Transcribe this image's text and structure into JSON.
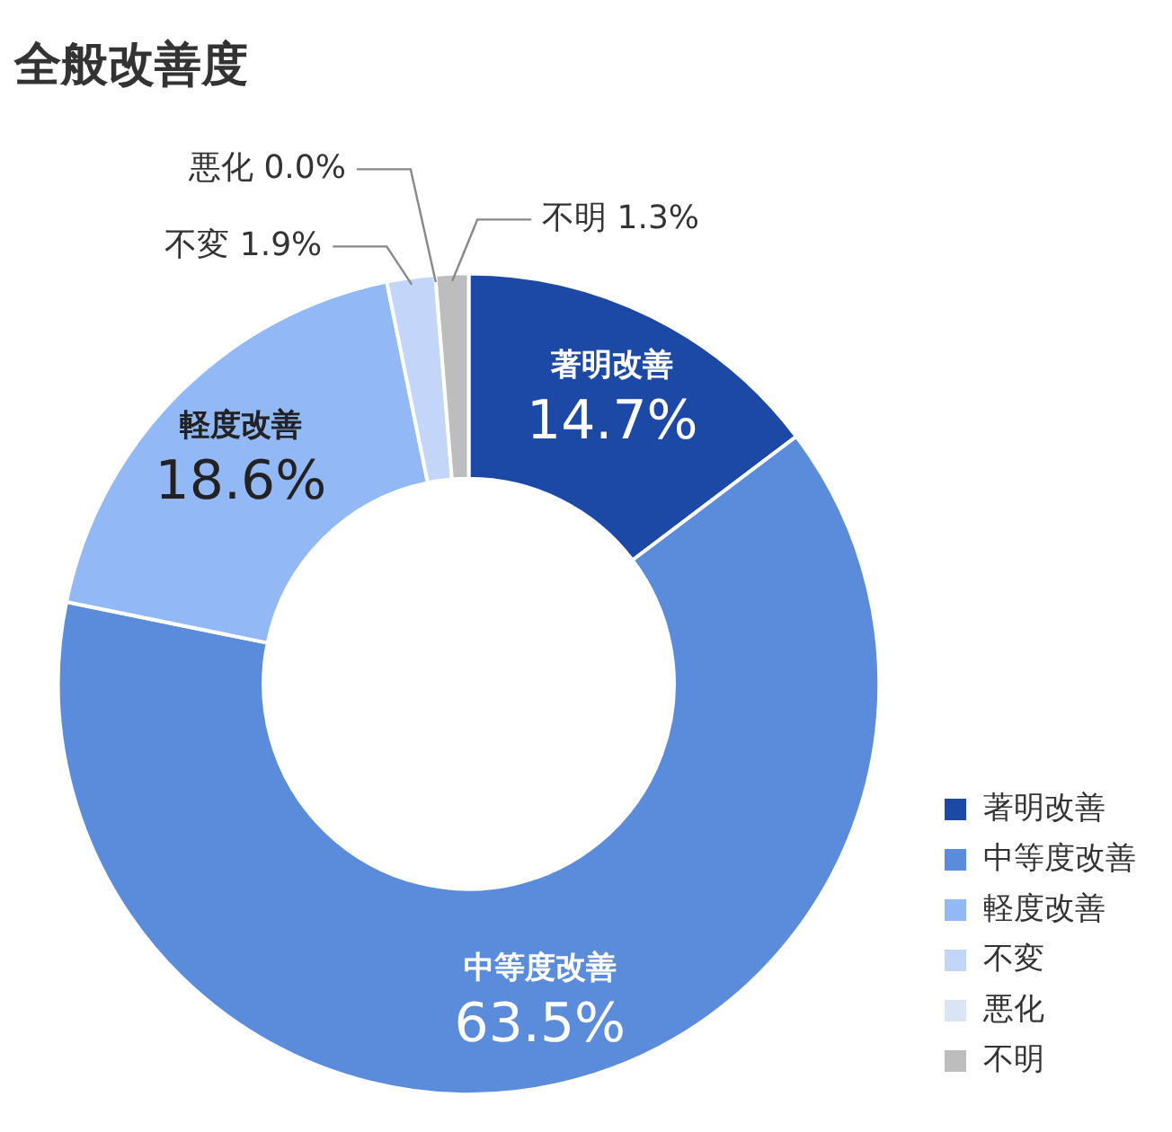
{
  "chart_data": {
    "type": "donut",
    "title": "全般改善度",
    "categories": [
      "著明改善",
      "中等度改善",
      "軽度改善",
      "不変",
      "悪化",
      "不明"
    ],
    "values": [
      14.7,
      63.5,
      18.6,
      1.9,
      0.0,
      1.3
    ],
    "colors": [
      "#1c48a6",
      "#5b8bdb",
      "#93b8f6",
      "#c3d6fa",
      "#dbe4f4",
      "#bdbdbd"
    ],
    "value_labels": [
      "14.7%",
      "63.5%",
      "18.6%",
      "1.9%",
      "0.0%",
      "1.3%"
    ],
    "legend": "bottom right"
  }
}
